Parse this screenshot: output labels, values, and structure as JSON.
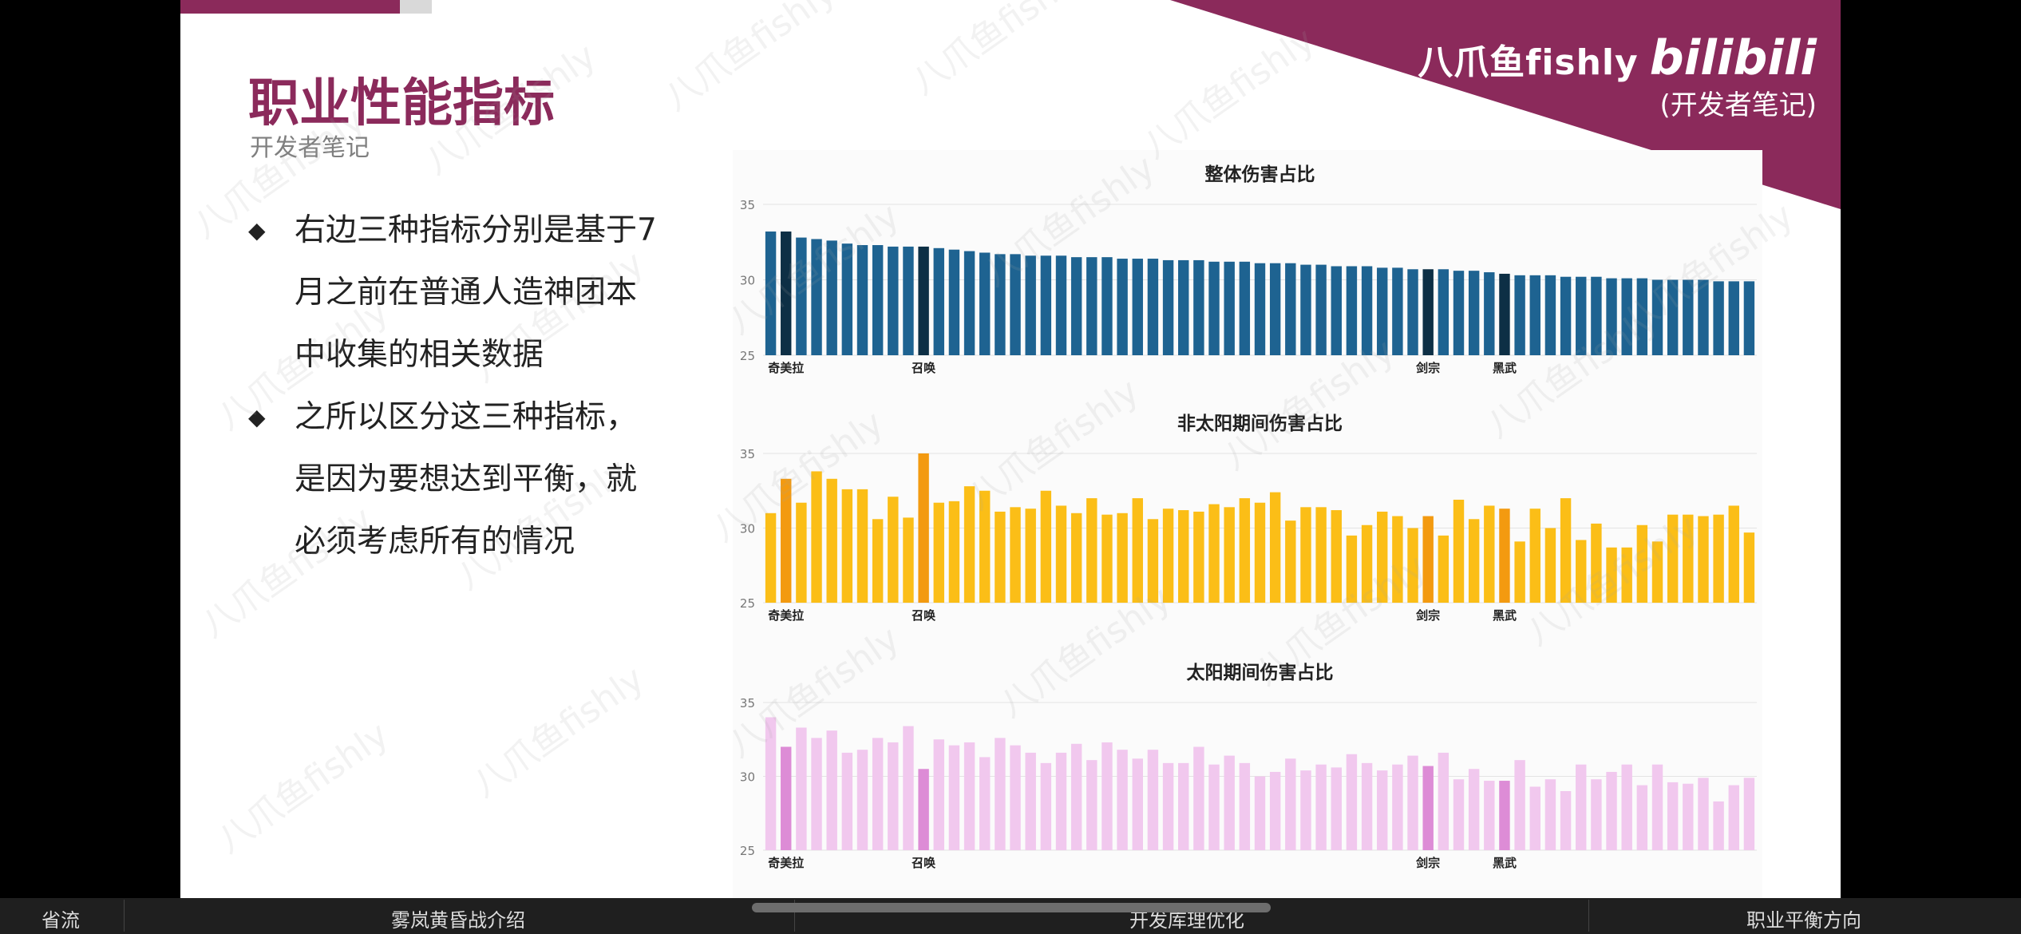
{
  "slide": {
    "title": "职业性能指标",
    "subtitle": "开发者笔记",
    "bullets": [
      {
        "lines": [
          "右边三种指标分别是基于7",
          "月之前在普通人造神团本",
          "中收集的相关数据"
        ]
      },
      {
        "lines": [
          "之所以区分这三种指标，",
          "是因为要想达到平衡，就",
          "必须考虑所有的情况"
        ]
      }
    ],
    "brand": {
      "name": "八爪鱼fishly",
      "logo": "bilibili",
      "sub": "(开发者笔记)"
    },
    "watermark": "八爪鱼fishly",
    "colors": {
      "title": "#8b2a5b",
      "corner": "#8b2a5b"
    }
  },
  "chart_data": [
    {
      "type": "bar",
      "title": "整体伤害占比",
      "ylim": [
        25,
        35
      ],
      "yticks": [
        25,
        30,
        35
      ],
      "values": [
        33.2,
        33.2,
        32.8,
        32.7,
        32.6,
        32.4,
        32.3,
        32.3,
        32.2,
        32.2,
        32.2,
        32.1,
        32.0,
        31.9,
        31.8,
        31.7,
        31.7,
        31.6,
        31.6,
        31.6,
        31.5,
        31.5,
        31.5,
        31.4,
        31.4,
        31.4,
        31.3,
        31.3,
        31.3,
        31.2,
        31.2,
        31.2,
        31.1,
        31.1,
        31.1,
        31.0,
        31.0,
        30.9,
        30.9,
        30.9,
        30.8,
        30.8,
        30.7,
        30.7,
        30.7,
        30.6,
        30.6,
        30.5,
        30.4,
        30.3,
        30.3,
        30.3,
        30.2,
        30.2,
        30.2,
        30.1,
        30.1,
        30.1,
        30.0,
        30.0,
        30.0,
        30.0,
        29.9,
        29.9,
        29.9
      ],
      "highlight": [
        1,
        10,
        43,
        48
      ],
      "category_labels": {
        "1": "奇美拉",
        "10": "召唤",
        "43": "剑宗",
        "48": "黑武"
      },
      "colors": {
        "base": "#1e6391",
        "highlight": "#0d2f45"
      },
      "grid": true
    },
    {
      "type": "bar",
      "title": "非太阳期间伤害占比",
      "ylim": [
        25,
        35
      ],
      "yticks": [
        25,
        30,
        35
      ],
      "values": [
        31.0,
        33.3,
        31.7,
        33.8,
        33.3,
        32.6,
        32.6,
        30.6,
        32.1,
        30.7,
        35.0,
        31.7,
        31.8,
        32.8,
        32.5,
        31.1,
        31.4,
        31.3,
        32.5,
        31.5,
        31.0,
        32.0,
        30.9,
        31.0,
        32.0,
        30.6,
        31.3,
        31.2,
        31.1,
        31.6,
        31.4,
        32.0,
        31.7,
        32.4,
        30.5,
        31.4,
        31.4,
        31.2,
        29.5,
        30.2,
        31.1,
        30.8,
        30.0,
        30.8,
        29.5,
        31.9,
        30.6,
        31.5,
        31.3,
        29.1,
        31.3,
        30.0,
        32.0,
        29.2,
        30.3,
        28.7,
        28.7,
        30.2,
        29.1,
        30.9,
        30.9,
        30.8,
        30.9,
        31.5,
        29.7
      ],
      "highlight": [
        1,
        10,
        43,
        48
      ],
      "category_labels": {
        "1": "奇美拉",
        "10": "召唤",
        "43": "剑宗",
        "48": "黑武"
      },
      "colors": {
        "base": "#fbbe17",
        "highlight": "#f39a10"
      },
      "grid": true
    },
    {
      "type": "bar",
      "title": "太阳期间伤害占比",
      "ylim": [
        25,
        35
      ],
      "yticks": [
        25,
        30,
        35
      ],
      "values": [
        34.0,
        32.0,
        33.3,
        32.6,
        33.1,
        31.6,
        31.8,
        32.6,
        32.3,
        33.4,
        30.5,
        32.5,
        32.1,
        32.3,
        31.3,
        32.6,
        32.1,
        31.6,
        30.9,
        31.6,
        32.2,
        31.1,
        32.3,
        31.8,
        31.2,
        31.8,
        30.9,
        30.9,
        32.0,
        30.8,
        31.4,
        30.9,
        30.0,
        30.3,
        31.2,
        30.4,
        30.8,
        30.6,
        31.5,
        30.9,
        30.4,
        30.8,
        31.4,
        30.7,
        31.6,
        29.8,
        30.5,
        29.7,
        29.7,
        31.1,
        29.3,
        29.8,
        29.0,
        30.8,
        29.8,
        30.3,
        30.8,
        29.4,
        30.8,
        29.6,
        29.5,
        29.9,
        28.3,
        29.4,
        29.9
      ],
      "highlight": [
        1,
        10,
        43,
        48
      ],
      "category_labels": {
        "1": "奇美拉",
        "10": "召唤",
        "43": "剑宗",
        "48": "黑武"
      },
      "colors": {
        "base": "#f1c8ee",
        "highlight": "#dd8cd6"
      },
      "grid": true
    }
  ],
  "bottom_bar": {
    "items": [
      "省流",
      "雾岚黄昏战介绍",
      "开发库理优化",
      "职业平衡方向"
    ]
  }
}
